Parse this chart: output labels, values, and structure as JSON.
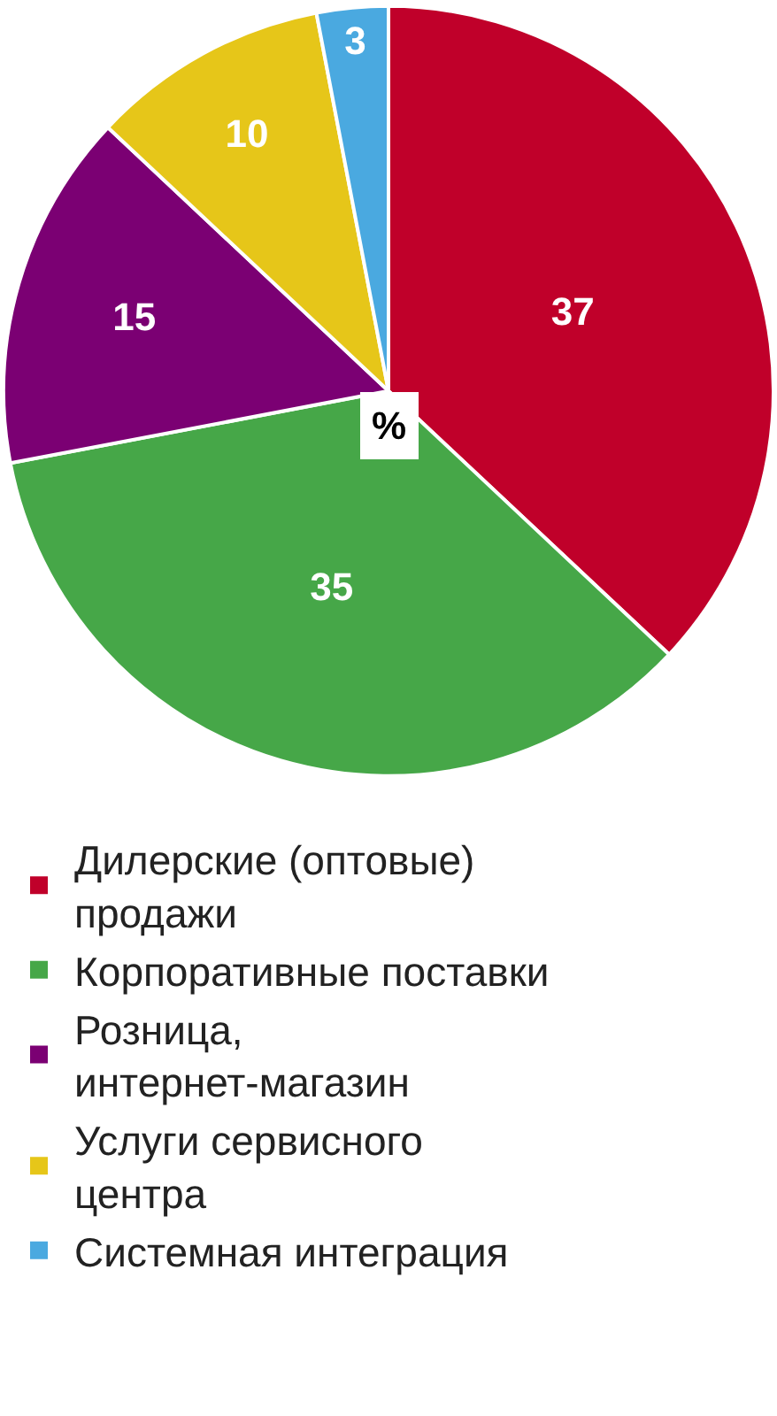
{
  "chart_data": {
    "type": "pie",
    "categories": [
      "Дилерские (оптовые) продажи",
      "Корпоративные поставки",
      "Розница, интернет-магазин",
      "Услуги сервисного центра",
      "Системная интеграция"
    ],
    "values": [
      37,
      35,
      15,
      10,
      3
    ],
    "colors": [
      "#c0002a",
      "#46a748",
      "#7b0073",
      "#e6c619",
      "#4aa9e0"
    ],
    "data_labels": true,
    "legend": "bottom",
    "annotations": [
      "%"
    ]
  }
}
